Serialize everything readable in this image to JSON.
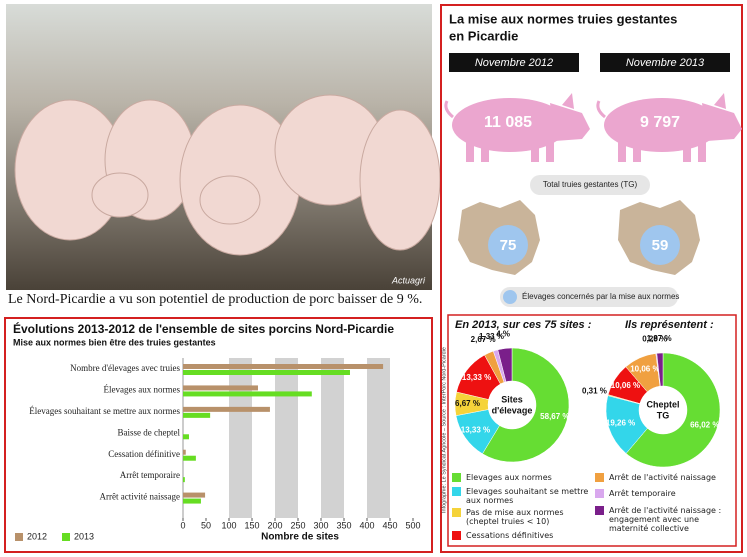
{
  "photo": {
    "credit": "Actuagri",
    "caption": "Le Nord-Picardie a vu son potentiel de production de porc baisser de 9 %."
  },
  "infographic": {
    "title": [
      "La mise aux normes truies gestantes",
      "en Picardie"
    ],
    "periods": [
      "Novembre 2012",
      "Novembre 2013"
    ],
    "total_sows": [
      "11 085",
      "9 797"
    ],
    "total_sows_label": "Total truies gestantes (TG)",
    "farms": [
      "75",
      "59"
    ],
    "farms_label": "Élevages concernés par la mise aux normes",
    "source": "Infographie: Le Syndicat Agricole – Source : InterPorc Nord-Picardie"
  },
  "chart_data": [
    {
      "type": "hbar",
      "title": "Évolutions 2013-2012 de l'ensemble de sites porcins Nord-Picardie",
      "subtitle": "Mise aux normes bien être des truies gestantes",
      "categories": [
        "Nombre d'élevages avec truies",
        "Élevages aux normes",
        "Élevages souhaitant se mettre aux normes",
        "Baisse de cheptel",
        "Cessation définitive",
        "Arrêt temporaire",
        "Arrêt activité naissage"
      ],
      "series": [
        {
          "name": "2012",
          "color": "#b8916a",
          "values": [
            435,
            163,
            189,
            0,
            6,
            0,
            48
          ]
        },
        {
          "name": "2013",
          "color": "#66dd22",
          "values": [
            363,
            280,
            59,
            13,
            28,
            4,
            39
          ]
        }
      ],
      "xlim": [
        0,
        500
      ],
      "xticks": [
        0,
        50,
        100,
        150,
        200,
        250,
        300,
        350,
        400,
        450,
        500
      ],
      "xlabel": "Nombre de sites",
      "grid_bands": true
    },
    {
      "type": "donut",
      "heading": "En 2013, sur ces 75 sites :",
      "center_label": [
        "Sites",
        "d'élevage"
      ],
      "categories": [
        "Elevages aux normes",
        "Elevages souhaitant se mettre aux normes",
        "Pas de mise aux normes (cheptel truies < 10)",
        "Cessations définitives",
        "Arrêt de l'activité naissage",
        "Arrêt temporaire",
        "Arrêt de l'activité naissage : engagement avec une maternité collective"
      ],
      "values": [
        58.67,
        13.33,
        6.67,
        13.33,
        2.67,
        1.33,
        4
      ],
      "value_labels": [
        "58,67 %",
        "13,33 %",
        "6,67 %",
        "13,33 %",
        "2,67 %",
        "1,33 %",
        "4 %"
      ],
      "colors": [
        "#66dd33",
        "#33d6ea",
        "#f5d33a",
        "#ee1111",
        "#f0a040",
        "#d9a8ee",
        "#7a1f8a"
      ]
    },
    {
      "type": "donut",
      "heading": "Ils représentent :",
      "center_label": [
        "Cheptel",
        "TG"
      ],
      "values": [
        66.02,
        19.26,
        0.31,
        10.06,
        10.06,
        0.29,
        1.87
      ],
      "value_labels": [
        "66,02 %",
        "19,26 %",
        "0,31 %",
        "10,06 %",
        "10,06 %",
        "0,29 %",
        "1,87 %"
      ],
      "colors": [
        "#66dd33",
        "#33d6ea",
        "#f5d33a",
        "#ee1111",
        "#f0a040",
        "#d9a8ee",
        "#7a1f8a"
      ]
    }
  ]
}
